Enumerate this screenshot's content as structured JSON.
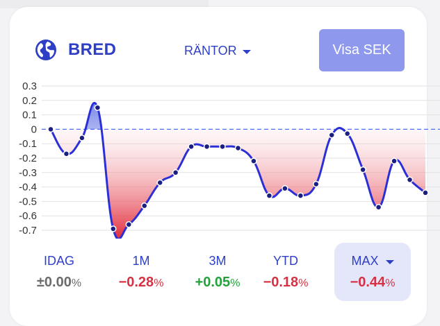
{
  "header": {
    "title": "BRED",
    "dropdown_label": "RÄNTOR",
    "visa_button": "Visa SEK",
    "globe_icon": "globe-icon"
  },
  "colors": {
    "brand": "#2e3fc6",
    "button_bg": "#8e99ee",
    "negative": "#d63042",
    "positive": "#22a23a",
    "neutral": "#6b6b6b",
    "active_period_bg": "#e4e6f9"
  },
  "chart_data": {
    "type": "line",
    "title": "",
    "xlabel": "",
    "ylabel": "",
    "ylim": [
      -0.7,
      0.3
    ],
    "y_ticks": [
      "0.3",
      "0.2",
      "0.1",
      "0",
      "-0.1",
      "-0.2",
      "-0.3",
      "-0.4",
      "-0.5",
      "-0.6",
      "-0.7"
    ],
    "grid": true,
    "baseline": 0,
    "series": [
      {
        "values": [
          0.0,
          -0.17,
          -0.06,
          0.15,
          -0.69,
          -0.66,
          -0.53,
          -0.37,
          -0.3,
          -0.12,
          -0.12,
          -0.12,
          -0.13,
          -0.22,
          -0.46,
          -0.41,
          -0.46,
          -0.38,
          -0.04,
          -0.03,
          -0.28,
          -0.54,
          -0.22,
          -0.35,
          -0.44
        ]
      }
    ]
  },
  "periods": [
    {
      "label": "IDAG",
      "sign": "±",
      "number": "0.00",
      "unit": "%",
      "tone": "neutral",
      "active": false
    },
    {
      "label": "1M",
      "sign": "−",
      "number": "0.28",
      "unit": "%",
      "tone": "negative",
      "active": false
    },
    {
      "label": "3M",
      "sign": "+",
      "number": "0.05",
      "unit": "%",
      "tone": "positive",
      "active": false
    },
    {
      "label": "YTD",
      "sign": "−",
      "number": "0.18",
      "unit": "%",
      "tone": "negative",
      "active": false
    },
    {
      "label": "MAX",
      "sign": "−",
      "number": "0.44",
      "unit": "%",
      "tone": "negative",
      "active": true
    }
  ]
}
